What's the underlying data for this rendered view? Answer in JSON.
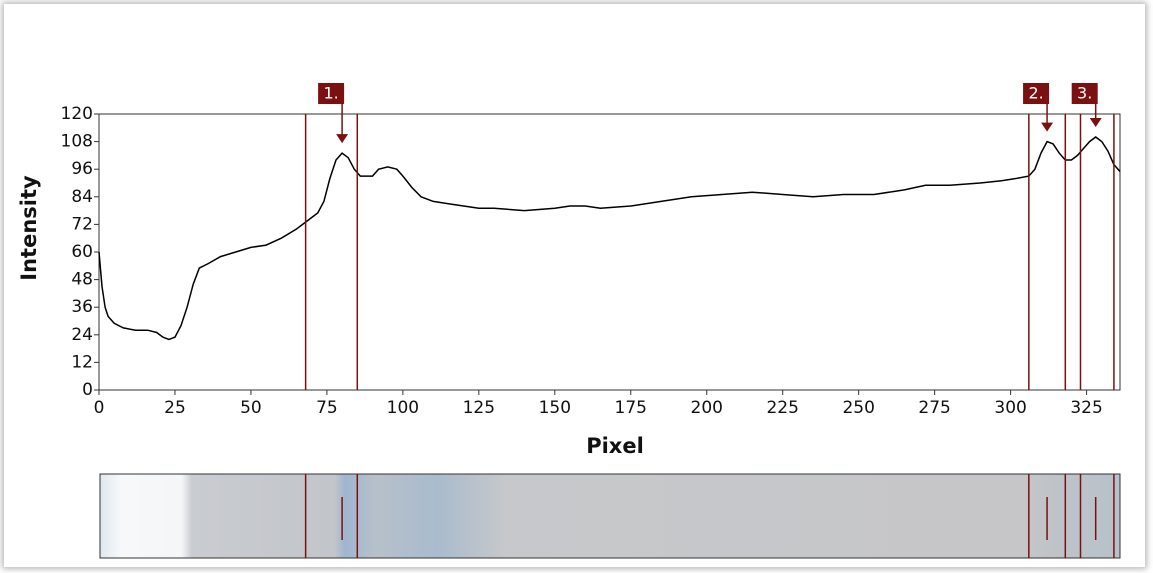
{
  "chart_data": {
    "type": "line",
    "x_label": "Pixel",
    "y_label": "Intensity",
    "xlim": [
      0,
      336
    ],
    "ylim": [
      0,
      120
    ],
    "xticks": [
      0,
      25,
      50,
      75,
      100,
      125,
      150,
      175,
      200,
      225,
      250,
      275,
      300,
      325
    ],
    "yticks": [
      0,
      12,
      24,
      36,
      48,
      60,
      72,
      84,
      96,
      108,
      120
    ],
    "series": [
      {
        "color": "#000000",
        "x": [
          0,
          1,
          2,
          3,
          5,
          8,
          12,
          16,
          19,
          21,
          23,
          25,
          27,
          29,
          31,
          33,
          36,
          40,
          45,
          50,
          55,
          60,
          65,
          68,
          70,
          72,
          74,
          76,
          78,
          80,
          82,
          84,
          86,
          88,
          90,
          92,
          95,
          98,
          100,
          103,
          106,
          110,
          115,
          120,
          125,
          130,
          140,
          150,
          155,
          160,
          165,
          175,
          185,
          195,
          205,
          215,
          225,
          235,
          245,
          255,
          265,
          272,
          280,
          290,
          297,
          302,
          306,
          308,
          310,
          312,
          314,
          316,
          318,
          320,
          322,
          324,
          326,
          328,
          330,
          332,
          334,
          336
        ],
        "values": [
          60,
          45,
          36,
          32,
          29,
          27,
          26,
          26,
          25,
          23,
          22,
          23,
          28,
          36,
          46,
          53,
          55,
          58,
          60,
          62,
          63,
          66,
          70,
          73,
          75,
          77,
          82,
          92,
          100,
          103,
          101,
          96,
          93,
          93,
          93,
          96,
          97,
          96,
          93,
          88,
          84,
          82,
          81,
          80,
          79,
          79,
          78,
          79,
          80,
          80,
          79,
          80,
          82,
          84,
          85,
          86,
          85,
          84,
          85,
          85,
          87,
          89,
          89,
          90,
          91,
          92,
          93,
          96,
          103,
          108,
          107,
          103,
          100,
          100,
          102,
          105,
          108,
          110,
          108,
          104,
          98,
          95
        ]
      }
    ],
    "peaks": [
      {
        "label": "1.",
        "color": "#7a1010",
        "x": 80,
        "start": 68,
        "end": 85
      },
      {
        "label": "2.",
        "color": "#7a1010",
        "x": 312,
        "start": 306,
        "end": 318
      },
      {
        "label": "3.",
        "color": "#7a1010",
        "x": 328,
        "start": 323,
        "end": 334
      }
    ]
  }
}
